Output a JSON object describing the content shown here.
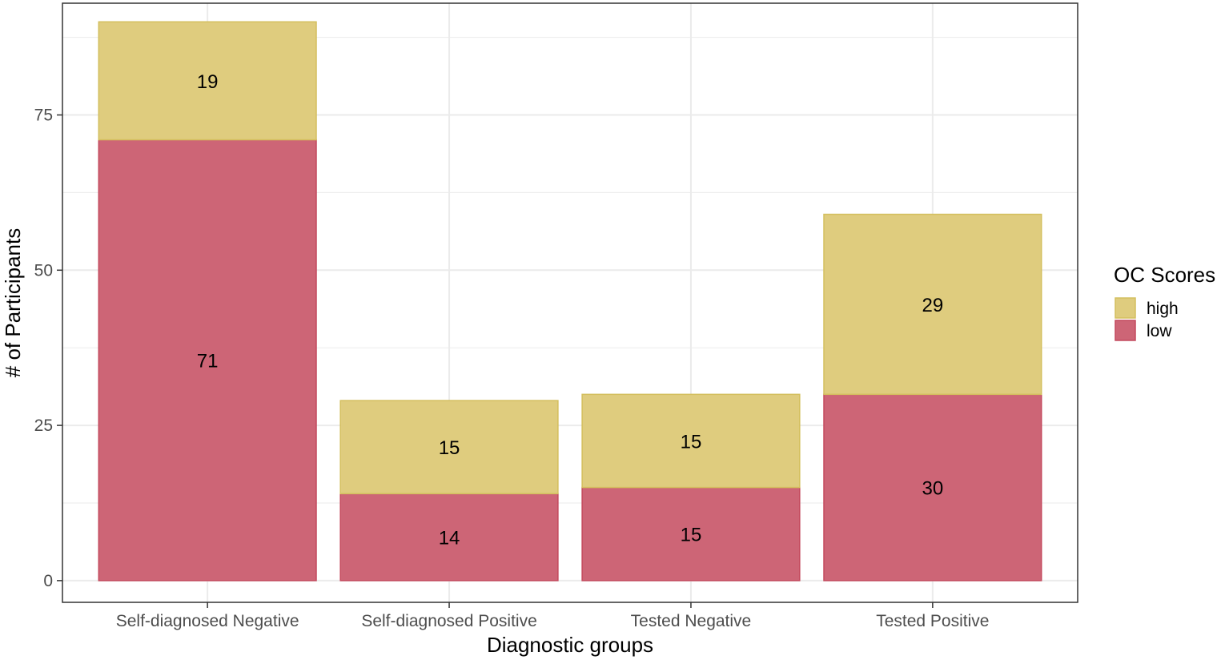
{
  "chart_data": {
    "type": "bar",
    "stacked": true,
    "categories": [
      "Self-diagnosed Negative",
      "Self-diagnosed Positive",
      "Tested Negative",
      "Tested Positive"
    ],
    "series": [
      {
        "name": "low",
        "values": [
          71,
          14,
          15,
          30
        ],
        "color": "#cd6576"
      },
      {
        "name": "high",
        "values": [
          19,
          15,
          15,
          29
        ],
        "color": "#dfcc7e"
      }
    ],
    "data_labels": true,
    "xlabel": "Diagnostic groups",
    "ylabel": "# of Participants",
    "ylim": [
      -3.5,
      93
    ],
    "yticks": [
      0,
      25,
      50,
      75
    ],
    "grid": true,
    "legend": {
      "title": "OC Scores",
      "placement": "right",
      "entries": [
        "high",
        "low"
      ]
    },
    "colors": {
      "high_fill": "#dfcc7e",
      "high_stroke": "#d4bf5e",
      "low_fill": "#cd6576",
      "low_stroke": "#c44a5e",
      "grid": "#ebebeb",
      "panel_border": "#333333"
    }
  }
}
